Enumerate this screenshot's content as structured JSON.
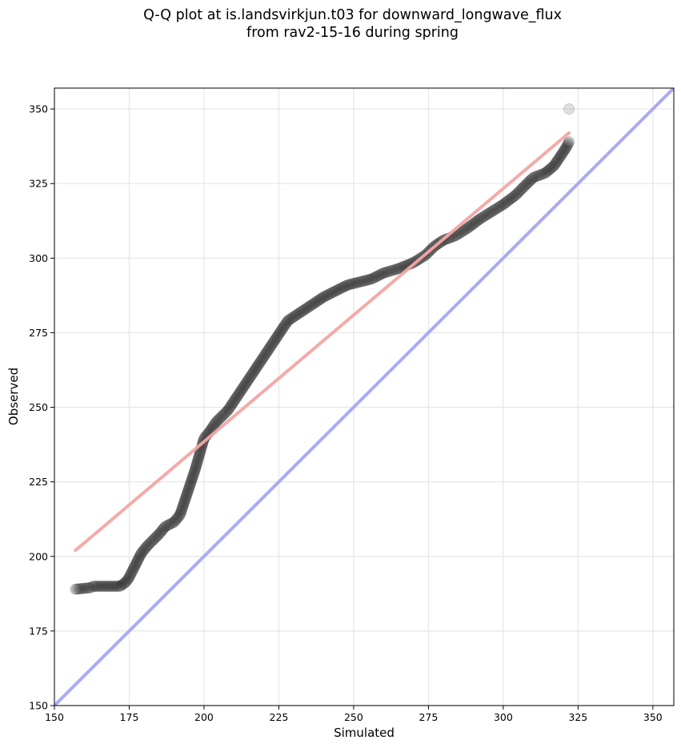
{
  "chart_data": {
    "type": "scatter",
    "title_line1": "Q-Q plot at is.landsvirkjun.t03 for downward_longwave_flux",
    "title_line2": "from rav2-15-16 during spring",
    "xlabel": "Simulated",
    "ylabel": "Observed",
    "xlim": [
      150,
      357
    ],
    "ylim": [
      150,
      357
    ],
    "xticks": [
      150,
      175,
      200,
      225,
      250,
      275,
      300,
      325,
      350
    ],
    "yticks": [
      150,
      175,
      200,
      225,
      250,
      275,
      300,
      325,
      350
    ],
    "grid": true,
    "colors": {
      "points": "#000000",
      "fit_line": "#f4a6a6",
      "identity_line": "#aaaaf5",
      "grid": "#e6e6e6"
    },
    "fit_line": {
      "x": [
        157,
        322
      ],
      "y": [
        202,
        342
      ]
    },
    "identity_line": {
      "x": [
        150,
        357
      ],
      "y": [
        150,
        357
      ]
    },
    "quantile_anchors": [
      [
        157,
        189
      ],
      [
        162,
        189.5
      ],
      [
        163,
        190
      ],
      [
        166,
        190
      ],
      [
        169,
        190
      ],
      [
        172,
        190
      ],
      [
        174,
        191.5
      ],
      [
        175,
        193
      ],
      [
        176,
        195
      ],
      [
        177,
        197
      ],
      [
        178,
        199
      ],
      [
        179,
        201
      ],
      [
        181,
        203.5
      ],
      [
        183,
        205.5
      ],
      [
        185,
        207.5
      ],
      [
        187,
        210
      ],
      [
        190,
        211.5
      ],
      [
        192,
        214
      ],
      [
        193,
        217
      ],
      [
        194,
        220
      ],
      [
        195,
        223
      ],
      [
        196,
        226
      ],
      [
        197,
        229
      ],
      [
        198,
        232.5
      ],
      [
        199,
        236
      ],
      [
        200,
        239.5
      ],
      [
        202,
        242
      ],
      [
        204,
        245
      ],
      [
        206,
        247
      ],
      [
        208,
        249
      ],
      [
        210,
        252
      ],
      [
        212,
        255
      ],
      [
        214,
        258
      ],
      [
        216,
        261
      ],
      [
        218,
        264
      ],
      [
        220,
        267
      ],
      [
        222,
        270
      ],
      [
        224,
        273
      ],
      [
        226,
        276
      ],
      [
        228,
        279
      ],
      [
        231,
        281
      ],
      [
        234,
        283
      ],
      [
        237,
        285
      ],
      [
        240,
        287
      ],
      [
        244,
        289
      ],
      [
        248,
        291
      ],
      [
        252,
        292
      ],
      [
        256,
        293
      ],
      [
        260,
        295
      ],
      [
        265,
        296.5
      ],
      [
        270,
        298.5
      ],
      [
        274,
        301
      ],
      [
        277,
        304
      ],
      [
        280,
        306
      ],
      [
        284,
        307.5
      ],
      [
        288,
        310
      ],
      [
        292,
        313
      ],
      [
        296,
        315.5
      ],
      [
        300,
        318
      ],
      [
        304,
        321
      ],
      [
        307,
        324
      ],
      [
        310,
        327
      ],
      [
        314,
        328.5
      ],
      [
        317,
        331
      ],
      [
        319,
        334
      ],
      [
        321,
        337
      ],
      [
        322,
        339
      ]
    ],
    "outlier_points": [
      [
        322,
        350
      ]
    ]
  }
}
